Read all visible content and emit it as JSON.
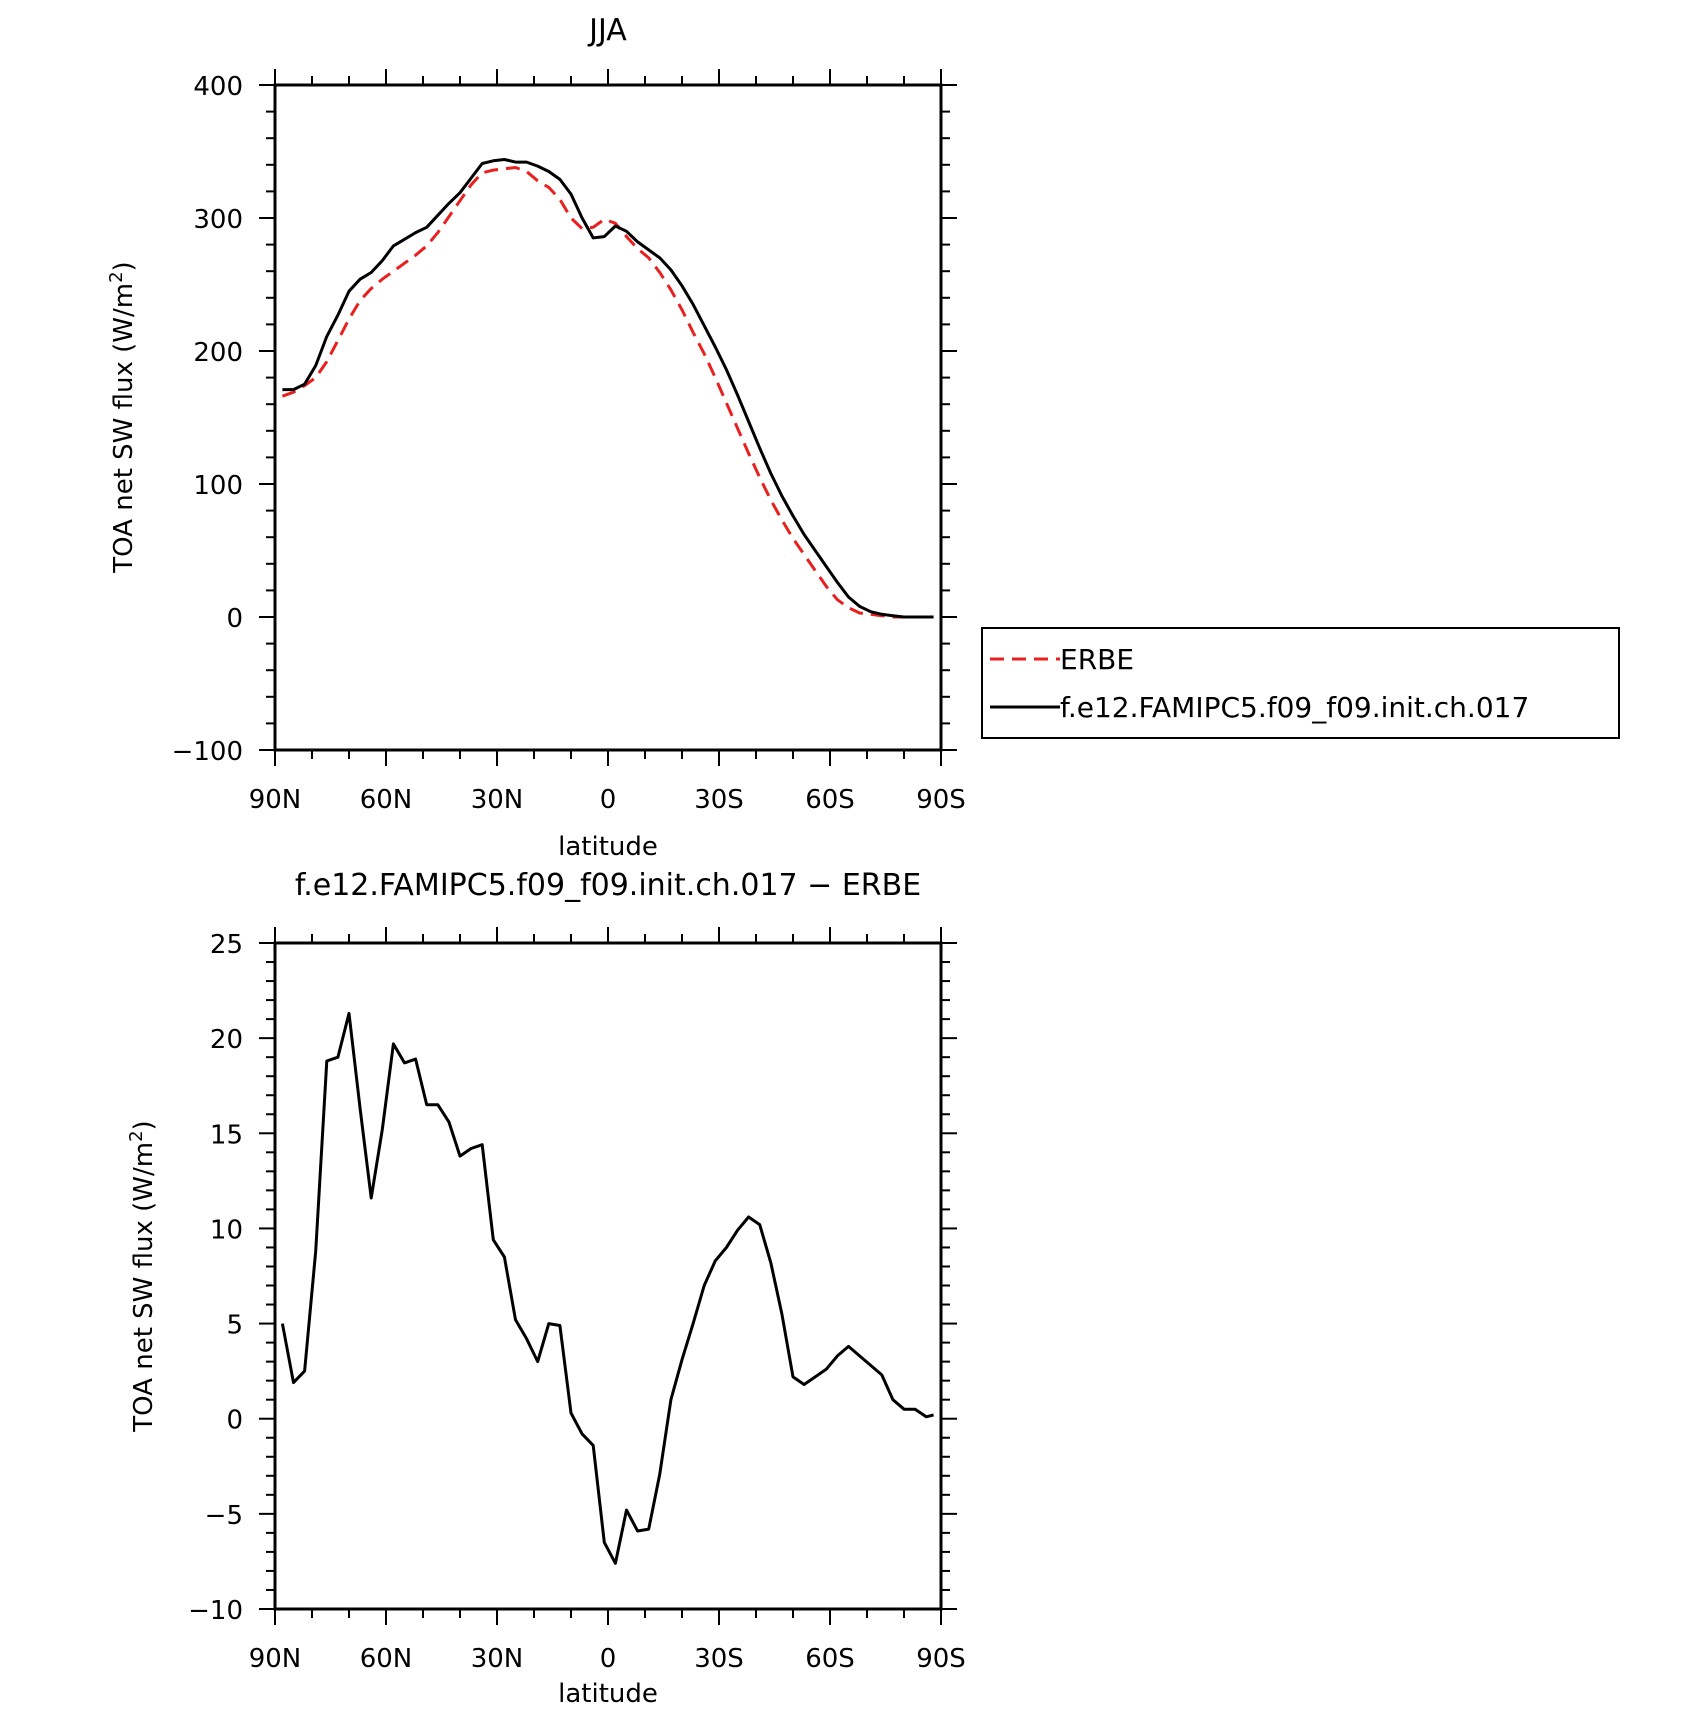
{
  "colors": {
    "erbe": "#e8201e",
    "model": "#000000"
  },
  "chart_data": [
    {
      "type": "line",
      "title": "JJA",
      "xlabel": "latitude",
      "ylabel": "TOA net SW flux (W/m²)",
      "ylabel_parts": [
        "TOA net SW flux (W/m",
        "2",
        ")"
      ],
      "xlim": [
        90,
        -90
      ],
      "ylim": [
        -100,
        400
      ],
      "x_ticks": [
        90,
        60,
        30,
        0,
        -30,
        -60,
        -90
      ],
      "x_tick_labels": [
        "90N",
        "60N",
        "30N",
        "0",
        "30S",
        "60S",
        "90S"
      ],
      "y_ticks": [
        -100,
        0,
        100,
        200,
        300,
        400
      ],
      "y_tick_labels": [
        "−100",
        "0",
        "100",
        "200",
        "300",
        "400"
      ],
      "legend_position": "right",
      "series": [
        {
          "name": "ERBE",
          "style": "dashed",
          "color": "#e8201e",
          "x": [
            88,
            85,
            82,
            79,
            76,
            73,
            70,
            67,
            64,
            61,
            58,
            55,
            52,
            49,
            46,
            43,
            40,
            37,
            34,
            31,
            28,
            25,
            22,
            19,
            16,
            13,
            10,
            7,
            4,
            1,
            -2,
            -5,
            -8,
            -11,
            -14,
            -17,
            -20,
            -23,
            -26,
            -29,
            -32,
            -35,
            -38,
            -41,
            -44,
            -47,
            -50,
            -53,
            -56,
            -59,
            -62,
            -65,
            -68,
            -71,
            -74,
            -77,
            -80,
            -83,
            -86,
            -88
          ],
          "y": [
            166,
            169,
            174,
            180,
            192,
            208,
            224,
            238,
            247,
            254,
            260,
            266,
            272,
            279,
            289,
            301,
            313,
            325,
            334,
            336,
            337,
            338,
            335,
            328,
            323,
            314,
            300,
            292,
            293,
            299,
            296,
            286,
            277,
            270,
            259,
            246,
            231,
            214,
            198,
            180,
            161,
            142,
            123,
            105,
            88,
            73,
            59,
            47,
            35,
            23,
            13,
            7,
            3,
            2,
            1,
            0,
            0,
            0,
            0,
            0
          ]
        },
        {
          "name": "f.e12.FAMIPC5.f09_f09.init.ch.017",
          "style": "solid",
          "color": "#000000",
          "x": [
            88,
            85,
            82,
            79,
            76,
            73,
            70,
            67,
            64,
            61,
            58,
            55,
            52,
            49,
            46,
            43,
            40,
            37,
            34,
            31,
            28,
            25,
            22,
            19,
            16,
            13,
            10,
            7,
            4,
            1,
            -2,
            -5,
            -8,
            -11,
            -14,
            -17,
            -20,
            -23,
            -26,
            -29,
            -32,
            -35,
            -38,
            -41,
            -44,
            -47,
            -50,
            -53,
            -56,
            -59,
            -62,
            -65,
            -68,
            -71,
            -74,
            -77,
            -80,
            -83,
            -86,
            -88
          ],
          "y": [
            171,
            171,
            175,
            189,
            211,
            227,
            245,
            254,
            259,
            268,
            279,
            284,
            289,
            293,
            302,
            311,
            319,
            330,
            341,
            343,
            344,
            342,
            342,
            339,
            335,
            329,
            318,
            300,
            285,
            286,
            294,
            290,
            282,
            276,
            270,
            261,
            249,
            235,
            219,
            203,
            186,
            167,
            147,
            127,
            108,
            91,
            76,
            62,
            50,
            38,
            26,
            15,
            8,
            4,
            2,
            1,
            0,
            0,
            0,
            0
          ]
        }
      ]
    },
    {
      "type": "line",
      "title": "f.e12.FAMIPC5.f09_f09.init.ch.017 − ERBE",
      "xlabel": "latitude",
      "ylabel": "TOA net SW flux (W/m²)",
      "ylabel_parts": [
        "TOA net SW flux (W/m",
        "2",
        ")"
      ],
      "xlim": [
        90,
        -90
      ],
      "ylim": [
        -10,
        25
      ],
      "x_ticks": [
        90,
        60,
        30,
        0,
        -30,
        -60,
        -90
      ],
      "x_tick_labels": [
        "90N",
        "60N",
        "30N",
        "0",
        "30S",
        "60S",
        "90S"
      ],
      "y_ticks": [
        -10,
        -5,
        0,
        5,
        10,
        15,
        20,
        25
      ],
      "y_tick_labels": [
        "−10",
        "−5",
        "0",
        "5",
        "10",
        "15",
        "20",
        "25"
      ],
      "series": [
        {
          "style": "solid",
          "color": "#000000",
          "x": [
            88,
            85,
            82,
            79,
            76,
            73,
            70,
            67,
            64,
            61,
            58,
            55,
            52,
            49,
            46,
            43,
            40,
            37,
            34,
            31,
            28,
            25,
            22,
            19,
            16,
            13,
            10,
            7,
            4,
            1,
            -2,
            -5,
            -8,
            -11,
            -14,
            -17,
            -20,
            -23,
            -26,
            -29,
            -32,
            -35,
            -38,
            -41,
            -44,
            -47,
            -50,
            -53,
            -56,
            -59,
            -62,
            -65,
            -68,
            -71,
            -74,
            -77,
            -80,
            -83,
            -86,
            -88
          ],
          "y": [
            5.0,
            1.9,
            2.5,
            8.8,
            18.8,
            19.0,
            21.3,
            16.3,
            11.6,
            15.2,
            19.7,
            18.7,
            18.9,
            16.5,
            16.5,
            15.6,
            13.8,
            14.2,
            14.4,
            9.4,
            8.5,
            5.2,
            4.2,
            3.0,
            5.0,
            4.9,
            0.3,
            -0.8,
            -1.4,
            -6.5,
            -7.6,
            -4.8,
            -5.9,
            -5.8,
            -2.9,
            1.0,
            3.1,
            5.0,
            7.0,
            8.3,
            9.0,
            9.9,
            10.6,
            10.2,
            8.2,
            5.5,
            2.2,
            1.8,
            2.2,
            2.6,
            3.3,
            3.8,
            3.3,
            2.8,
            2.3,
            1.0,
            0.5,
            0.5,
            0.1,
            0.2
          ]
        }
      ]
    }
  ]
}
